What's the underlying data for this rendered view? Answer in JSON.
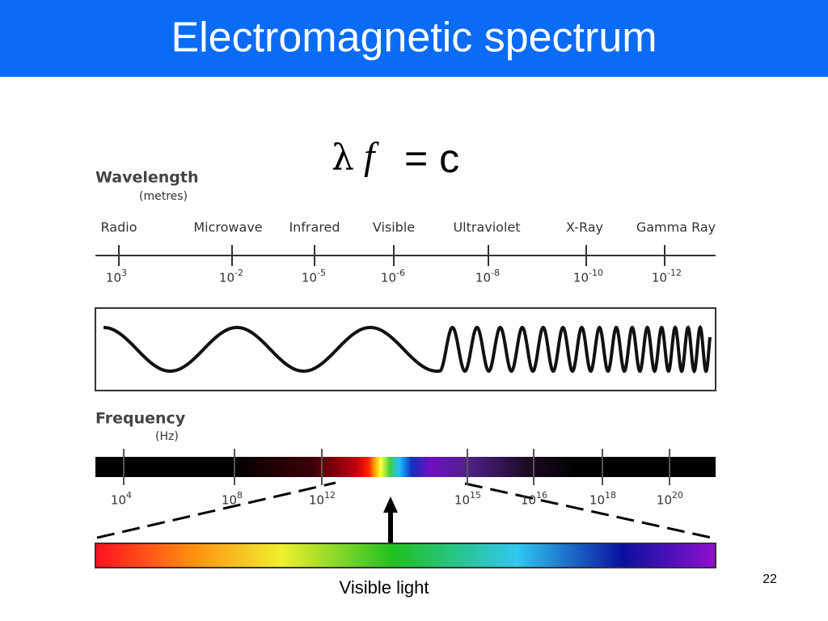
{
  "header": {
    "title": "Electromagnetic spectrum"
  },
  "equation": {
    "lambda": "λ",
    "f": "f",
    "equals": "= c"
  },
  "wavelength": {
    "label": "Wavelength",
    "unit": "(metres)",
    "bands": [
      {
        "name": "Radio",
        "base": "10",
        "exponent": "3"
      },
      {
        "name": "Microwave",
        "base": "10",
        "exponent": "-2"
      },
      {
        "name": "Infrared",
        "base": "10",
        "exponent": "-5"
      },
      {
        "name": "Visible",
        "base": "10",
        "exponent": "-6"
      },
      {
        "name": "Ultraviolet",
        "base": "10",
        "exponent": "-8"
      },
      {
        "name": "X-Ray",
        "base": "10",
        "exponent": "-10"
      },
      {
        "name": "Gamma Ray",
        "base": "10",
        "exponent": "-12"
      }
    ]
  },
  "frequency": {
    "label": "Frequency",
    "unit": "(Hz)",
    "ticks": [
      {
        "base": "10",
        "exponent": "4"
      },
      {
        "base": "10",
        "exponent": "8"
      },
      {
        "base": "10",
        "exponent": "12"
      },
      {
        "base": "10",
        "exponent": "15"
      },
      {
        "base": "10",
        "exponent": "16"
      },
      {
        "base": "10",
        "exponent": "18"
      },
      {
        "base": "10",
        "exponent": "20"
      }
    ]
  },
  "visible_label": "Visible light",
  "page_number": "22"
}
